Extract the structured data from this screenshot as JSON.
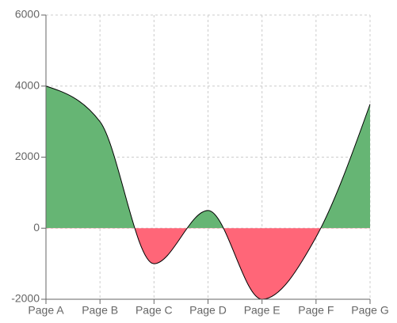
{
  "chart_data": {
    "type": "area",
    "categories": [
      "Page A",
      "Page B",
      "Page C",
      "Page D",
      "Page E",
      "Page F",
      "Page G"
    ],
    "values": [
      4000,
      3000,
      -1000,
      500,
      -2000,
      -250,
      3490
    ],
    "positive_color": "#66b574",
    "negative_color": "#ff6678",
    "line_color": "#000000",
    "ylim": [
      -2000,
      6000
    ],
    "yticks": [
      -2000,
      0,
      2000,
      4000,
      6000
    ],
    "grid": true
  }
}
